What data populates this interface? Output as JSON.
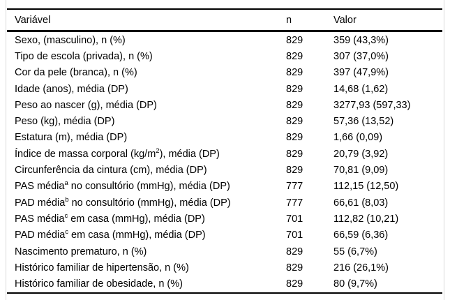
{
  "table": {
    "columns": [
      {
        "label": "Variável"
      },
      {
        "label": "n"
      },
      {
        "label": "Valor"
      }
    ],
    "rows": [
      {
        "pre": "Sexo, (masculino), n (%)",
        "sup": "",
        "post": "",
        "n": "829",
        "value": "359 (43,3%)"
      },
      {
        "pre": "Tipo de escola (privada), n (%)",
        "sup": "",
        "post": "",
        "n": "829",
        "value": "307 (37,0%)"
      },
      {
        "pre": "Cor da pele (branca), n (%)",
        "sup": "",
        "post": "",
        "n": "829",
        "value": "397 (47,9%)"
      },
      {
        "pre": "Idade (anos), média (DP)",
        "sup": "",
        "post": "",
        "n": "829",
        "value": "14,68 (1,62)"
      },
      {
        "pre": "Peso ao nascer (g), média (DP)",
        "sup": "",
        "post": "",
        "n": "829",
        "value": "3277,93 (597,33)"
      },
      {
        "pre": "Peso (kg), média (DP)",
        "sup": "",
        "post": "",
        "n": "829",
        "value": "57,36 (13,52)"
      },
      {
        "pre": "Estatura (m), média (DP)",
        "sup": "",
        "post": "",
        "n": "829",
        "value": "1,66 (0,09)"
      },
      {
        "pre": "Índice de massa corporal (kg/m",
        "sup": "2",
        "post": "), média (DP)",
        "n": "829",
        "value": "20,79 (3,92)"
      },
      {
        "pre": "Circunferência da cintura (cm), média (DP)",
        "sup": "",
        "post": "",
        "n": "829",
        "value": "70,81 (9,09)"
      },
      {
        "pre": "PAS média",
        "sup": "a",
        "post": " no consultório (mmHg), média (DP)",
        "n": "777",
        "value": "112,15 (12,50)"
      },
      {
        "pre": "PAD média",
        "sup": "b",
        "post": " no consultório (mmHg), média (DP)",
        "n": "777",
        "value": "66,61 (8,03)"
      },
      {
        "pre": "PAS média",
        "sup": "c",
        "post": " em casa (mmHg), média (DP)",
        "n": "701",
        "value": "112,82 (10,21)"
      },
      {
        "pre": "PAD média",
        "sup": "c",
        "post": " em casa (mmHg), média (DP)",
        "n": "701",
        "value": "66,59 (6,36)"
      },
      {
        "pre": "Nascimento prematuro, n (%)",
        "sup": "",
        "post": "",
        "n": "829",
        "value": "55 (6,7%)"
      },
      {
        "pre": "Histórico familiar de hipertensão, n (%)",
        "sup": "",
        "post": "",
        "n": "829",
        "value": "216 (26,1%)"
      },
      {
        "pre": "Histórico familiar de obesidade, n (%)",
        "sup": "",
        "post": "",
        "n": "829",
        "value": "80 (9,7%)"
      }
    ]
  },
  "colors": {
    "rule_black": "#000000",
    "edge_gray": "#d9d9d9"
  }
}
